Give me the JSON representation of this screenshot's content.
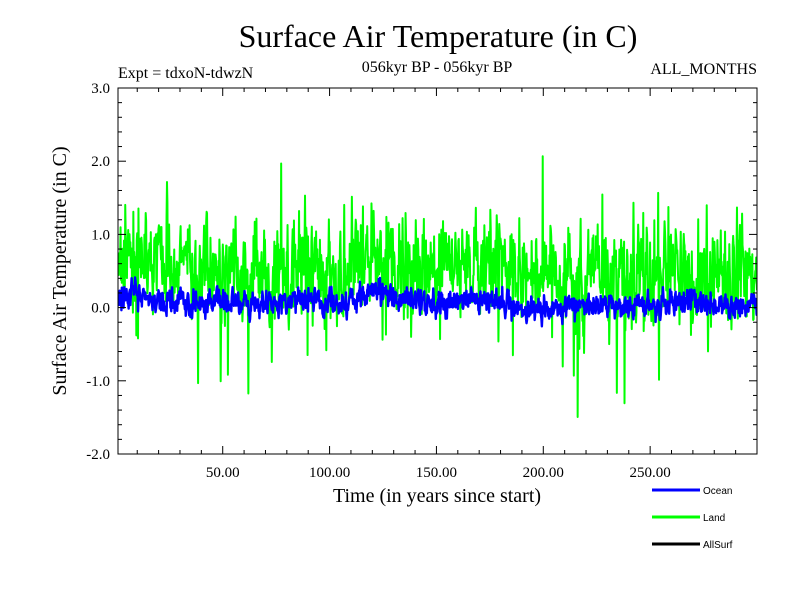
{
  "chart_data": {
    "type": "line",
    "title": "Surface Air Temperature (in C)",
    "subtitle_left": "Expt = tdxoN-tdwzN",
    "subtitle_center": "056kyr BP - 056kyr BP",
    "subtitle_right": "ALL_MONTHS",
    "xlabel": "Time (in years since start)",
    "ylabel": "Surface Air Temperature (in C)",
    "xlim": [
      1,
      300
    ],
    "ylim": [
      -2.0,
      3.0
    ],
    "x_ticks": [
      {
        "value": 50,
        "label": "50.00"
      },
      {
        "value": 100,
        "label": "100.00"
      },
      {
        "value": 150,
        "label": "150.00"
      },
      {
        "value": 200,
        "label": "200.00"
      },
      {
        "value": 250,
        "label": "250.00"
      }
    ],
    "y_ticks": [
      {
        "value": 3.0,
        "label": "3.0"
      },
      {
        "value": 2.0,
        "label": "2.0"
      },
      {
        "value": 1.0,
        "label": "1.0"
      },
      {
        "value": 0.0,
        "label": "0.0"
      },
      {
        "value": -1.0,
        "label": "-1.0"
      },
      {
        "value": -2.0,
        "label": "-2.0"
      }
    ],
    "grid": false,
    "legend_position": "bottom-right",
    "series": [
      {
        "name": "Ocean",
        "color": "#0000ff",
        "mean": 0.1,
        "amplitude": 0.35,
        "x": [
          1,
          10,
          20,
          30,
          40,
          50,
          60,
          70,
          80,
          90,
          100,
          110,
          120,
          130,
          140,
          150,
          160,
          170,
          180,
          190,
          200,
          210,
          220,
          230,
          240,
          250,
          260,
          270,
          280,
          290,
          300
        ],
        "values": [
          0.15,
          0.2,
          0.1,
          0.1,
          0.05,
          0.1,
          0.05,
          0.1,
          0.1,
          0.15,
          0.05,
          0.05,
          0.25,
          0.15,
          0.1,
          0.05,
          0.1,
          0.1,
          0.1,
          0.0,
          -0.05,
          0.0,
          0.0,
          0.0,
          0.05,
          0.0,
          0.1,
          0.05,
          0.05,
          0.0,
          0.1
        ]
      },
      {
        "name": "Land",
        "color": "#00ff00",
        "mean": 0.55,
        "amplitude": 1.3,
        "x": [
          1,
          10,
          20,
          30,
          40,
          50,
          60,
          70,
          80,
          90,
          100,
          110,
          120,
          130,
          140,
          150,
          160,
          170,
          180,
          190,
          200,
          210,
          220,
          230,
          240,
          250,
          260,
          270,
          280,
          290,
          300
        ],
        "values": [
          0.6,
          0.7,
          0.6,
          0.5,
          0.5,
          0.5,
          0.5,
          0.55,
          0.55,
          0.6,
          0.5,
          0.5,
          0.7,
          0.6,
          0.5,
          0.5,
          0.55,
          0.55,
          0.5,
          0.45,
          0.4,
          0.4,
          0.4,
          0.4,
          0.45,
          0.4,
          0.5,
          0.45,
          0.4,
          0.4,
          0.5
        ]
      },
      {
        "name": "AllSurf",
        "color": "#000000",
        "values": []
      }
    ]
  }
}
